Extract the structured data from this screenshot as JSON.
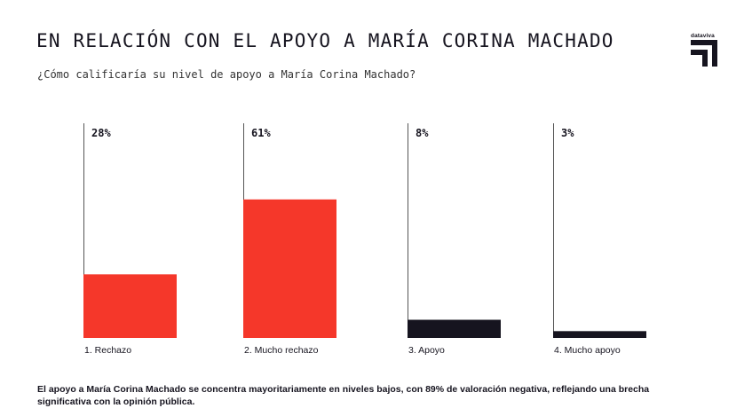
{
  "header": {
    "title": "EN RELACIÓN CON EL APOYO A MARÍA CORINA MACHADO",
    "subtitle": "¿Cómo calificaría su nivel de apoyo a María Corina Machado?"
  },
  "logo": {
    "text": "dataviva"
  },
  "footnote": "El apoyo a María Corina Machado se concentra mayoritariamente en niveles bajos, con 89% de valoración negativa, reflejando una brecha significativa con la opinión pública.",
  "colors": {
    "negative": "#f5372a",
    "positive": "#16141f",
    "rule": "#555555",
    "text": "#16141f"
  },
  "chart_data": {
    "type": "bar",
    "categories": [
      "1. Rechazo",
      "2. Mucho rechazo",
      "3. Apoyo",
      "4. Mucho apoyo"
    ],
    "values": [
      28,
      61,
      8,
      3
    ],
    "value_labels": [
      "28%",
      "61%",
      "8%",
      "3%"
    ],
    "bar_colors": [
      "#f5372a",
      "#f5372a",
      "#16141f",
      "#16141f"
    ],
    "title": "",
    "xlabel": "",
    "ylabel": "",
    "ylim": [
      0,
      100
    ],
    "grid": false,
    "legend": "none"
  }
}
